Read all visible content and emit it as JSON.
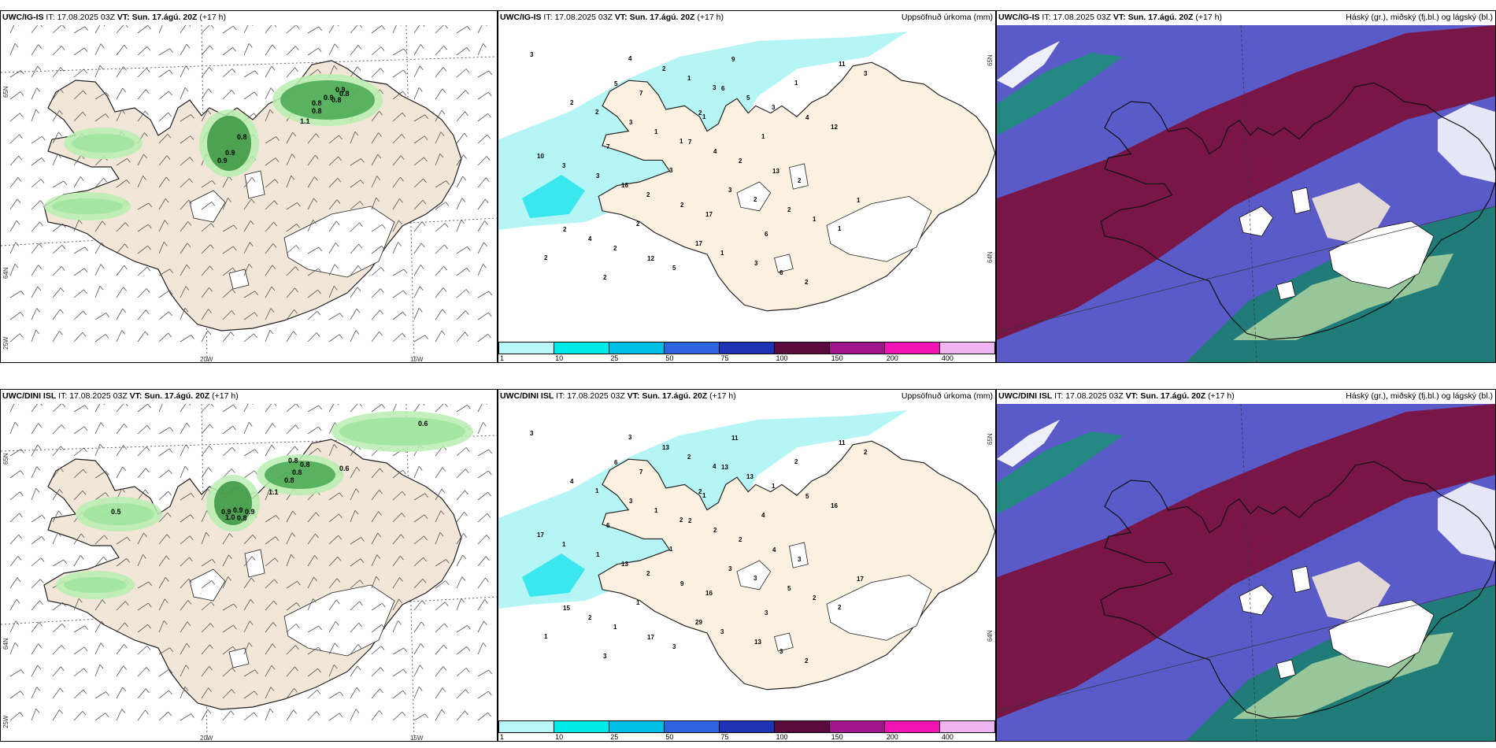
{
  "rows": [
    {
      "model": "UWC/IG-IS",
      "wind": {
        "it_label": "IT:",
        "it_value": "17.08.2025 03Z",
        "vt_label": "VT:",
        "vt_value": "Sun. 17.ágú. 20Z",
        "lead": "(+17 h)",
        "values": [
          "0.9",
          "0.8",
          "0.9",
          "0.8",
          "0.8",
          "0.9",
          "0.8",
          "0.8",
          "0.9",
          "1.1"
        ]
      },
      "precip": {
        "it_label": "IT:",
        "it_value": "17.08.2025 03Z",
        "vt_label": "VT:",
        "vt_value": "Sun. 17.ágú. 20Z",
        "lead": "(+17 h)",
        "right_title": "Uppsöfnuð úrkoma (mm)",
        "values": [
          "3",
          "5",
          "2",
          "7",
          "13",
          "1",
          "2",
          "12",
          "9",
          "6",
          "4",
          "7",
          "3",
          "2",
          "6",
          "3",
          "11",
          "7",
          "3",
          "4",
          "2",
          "2",
          "4",
          "5",
          "2",
          "5",
          "12",
          "10",
          "16",
          "17",
          "17",
          "6",
          "3",
          "2",
          "1",
          "2",
          "3",
          "1",
          "2",
          "2",
          "1",
          "3",
          "1",
          "3",
          "2",
          "2",
          "1",
          "2",
          "1",
          "2",
          "1",
          "3",
          "2",
          "1",
          "2",
          "4",
          "3",
          "1"
        ]
      },
      "cloud": {
        "it_label": "IT:",
        "it_value": "17.08.2025 03Z",
        "vt_label": "VT:",
        "vt_value": "Sun. 17.ágú. 20Z",
        "lead": "(+17 h)",
        "right_title": "Háský (gr.), miðský (fj.bl.) og lágský (bl.)"
      }
    },
    {
      "model": "UWC/DINI ISL",
      "wind": {
        "it_label": "IT:",
        "it_value": "17.08.2025 03Z",
        "vt_label": "VT:",
        "vt_value": "Sun. 17.ágú. 20Z",
        "lead": "(+17 h)",
        "values": [
          "0.6",
          "0.6",
          "0.8",
          "0.8",
          "0.8",
          "0.8",
          "1.1",
          "0.5",
          "0.9",
          "0.9",
          "0.8",
          "0.9",
          "1.0"
        ]
      },
      "precip": {
        "it_label": "IT:",
        "it_value": "17.08.2025 03Z",
        "vt_label": "VT:",
        "vt_value": "Sun. 17.ágú. 20Z",
        "lead": "(+17 h)",
        "right_title": "Uppsöfnuð úrkoma (mm)",
        "values": [
          "3",
          "6",
          "2",
          "2",
          "4",
          "17",
          "15",
          "17",
          "11",
          "13",
          "5",
          "6",
          "1",
          "9",
          "3",
          "13",
          "11",
          "7",
          "3",
          "2",
          "3",
          "5",
          "2",
          "3",
          "13",
          "13",
          "16",
          "17",
          "13",
          "16",
          "29",
          "3",
          "2",
          "4",
          "1",
          "2",
          "3",
          "2",
          "1",
          "3",
          "2",
          "1",
          "4",
          "1",
          "2",
          "1",
          "3",
          "2",
          "2",
          "1",
          "2",
          "1",
          "3",
          "2",
          "1",
          "3",
          "4",
          "1"
        ]
      },
      "cloud": {
        "it_label": "IT:",
        "it_value": "17.08.2025 03Z",
        "vt_label": "VT:",
        "vt_value": "Sun. 17.ágú. 20Z",
        "lead": "(+17 h)",
        "right_title": "Háský (gr.), miðský (fj.bl.) og lágský (bl.)"
      }
    }
  ],
  "axis": {
    "lon1": "20W",
    "lon2": "15W",
    "lon3": "25W",
    "lat1": "65N",
    "lat2": "64N"
  },
  "colorbar": {
    "ticks": [
      "1",
      "10",
      "25",
      "50",
      "75",
      "100",
      "150",
      "200",
      "400"
    ],
    "colors": [
      "#b8f7f7",
      "#00eaea",
      "#00bfe6",
      "#2d64e0",
      "#1e32b4",
      "#5a0a3c",
      "#a0148c",
      "#f014b4",
      "#f0b4f0"
    ]
  },
  "colors": {
    "land": "#f1e6d7",
    "ocean": "#ffffff",
    "precip_light": "#b5f5f5",
    "cloud_high": "#7a1440",
    "cloud_mid": "#5a5ac8",
    "cloud_low": "#1a8070"
  }
}
